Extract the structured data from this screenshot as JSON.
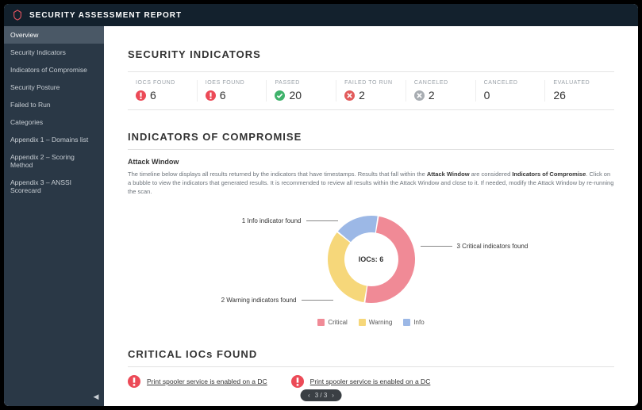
{
  "colors": {
    "topbar_bg": "#13212d",
    "sidebar_bg": "#2a3846",
    "sidebar_active_bg": "#4a5866",
    "critical": "#f08a96",
    "warning": "#f6d77a",
    "info": "#9cb8e6",
    "green": "#3fb26b",
    "red_fail": "#e25b5b",
    "grey_cancel": "#a8adb2",
    "logo_accent": "#e0535f"
  },
  "topbar": {
    "title": "SECURITY ASSESSMENT REPORT"
  },
  "sidebar": {
    "items": [
      {
        "label": "Overview",
        "active": true
      },
      {
        "label": "Security Indicators",
        "active": false
      },
      {
        "label": "Indicators of Compromise",
        "active": false
      },
      {
        "label": "Security Posture",
        "active": false
      },
      {
        "label": "Failed to Run",
        "active": false
      },
      {
        "label": "Categories",
        "active": false
      },
      {
        "label": "Appendix 1 – Domains list",
        "active": false
      },
      {
        "label": "Appendix 2 – Scoring Method",
        "active": false
      },
      {
        "label": "Appendix 3 – ANSSI Scorecard",
        "active": false
      }
    ]
  },
  "sections": {
    "security_indicators": {
      "title": "SECURITY INDICATORS",
      "metrics": [
        {
          "label": "IOCs FOUND",
          "value": "6",
          "icon": "alert",
          "icon_color": "#ec4a57"
        },
        {
          "label": "IOEs FOUND",
          "value": "6",
          "icon": "alert",
          "icon_color": "#ec4a57"
        },
        {
          "label": "PASSED",
          "value": "20",
          "icon": "check",
          "icon_color": "#3fb26b"
        },
        {
          "label": "FAILED TO RUN",
          "value": "2",
          "icon": "x",
          "icon_color": "#e25b5b"
        },
        {
          "label": "CANCELED",
          "value": "2",
          "icon": "x",
          "icon_color": "#a8adb2"
        },
        {
          "label": "CANCELED",
          "value": "0",
          "icon": "none",
          "icon_color": ""
        },
        {
          "label": "EVALUATED",
          "value": "26",
          "icon": "none",
          "icon_color": ""
        }
      ]
    },
    "ioc": {
      "title": "INDICATORS OF COMPROMISE",
      "subhead": "Attack Window",
      "desc_pre": "The timeline below displays all results returned by the indicators that have timestamps. Results that fall within the ",
      "desc_bold1": "Attack Window",
      "desc_mid": " are considered ",
      "desc_bold2": "Indicators of Compromise",
      "desc_post": ". Click on a bubble to view the indicators that generated results. It is recommended to review all results within the Attack Window and close to it. If needed, modify the Attack Window by re-running the scan.",
      "donut": {
        "type": "donut",
        "center_label": "IOCs: 6",
        "total": 6,
        "outer_radius": 55,
        "inner_radius": 34,
        "start_angle_deg": -80,
        "slices": [
          {
            "name": "Critical",
            "value": 3,
            "color": "#f08a96",
            "callout": "3 Critical indicators found"
          },
          {
            "name": "Warning",
            "value": 2,
            "color": "#f6d77a",
            "callout": "2 Warning indicators found"
          },
          {
            "name": "Info",
            "value": 1,
            "color": "#9cb8e6",
            "callout": "1 Info indicator found"
          }
        ],
        "gap_deg": 2,
        "legend": [
          {
            "label": "Critical",
            "color": "#f08a96"
          },
          {
            "label": "Warning",
            "color": "#f6d77a"
          },
          {
            "label": "Info",
            "color": "#9cb8e6"
          }
        ]
      }
    },
    "critical_iocs": {
      "title": "CRITICAL IOCs FOUND",
      "items": [
        {
          "label": "Print spooler service is enabled on a DC",
          "icon_color": "#ec4a57"
        },
        {
          "label": "Print spooler service is enabled on a DC",
          "icon_color": "#ec4a57"
        }
      ]
    }
  },
  "pager": {
    "text": "3 / 3"
  }
}
